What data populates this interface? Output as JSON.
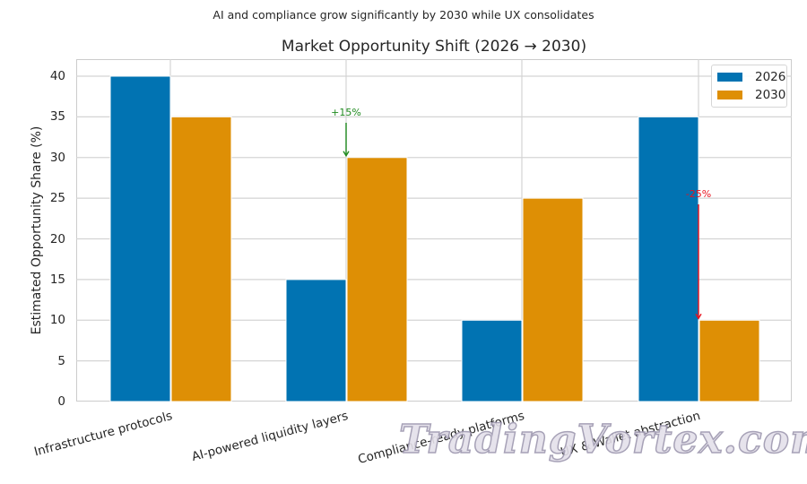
{
  "suptitle": "AI and compliance grow significantly by 2030 while UX consolidates",
  "title": "Market Opportunity Shift (2026 → 2030)",
  "ylabel": "Estimated Opportunity Share (%)",
  "yticks": [
    "0",
    "5",
    "10",
    "15",
    "20",
    "25",
    "30",
    "35",
    "40"
  ],
  "xticks": [
    "Infrastructure protocols",
    "AI-powered liquidity layers",
    "Compliance-ready platforms",
    "UX & Wallet abstraction"
  ],
  "legend": [
    {
      "label": "2026",
      "color": "#0173b2"
    },
    {
      "label": "2030",
      "color": "#de8f05"
    }
  ],
  "annotations": [
    {
      "text": "+15%",
      "color": "#1f8a1f"
    },
    {
      "text": "-25%",
      "color": "#e8121e"
    }
  ],
  "watermark": "TradingVortex.com",
  "chart_data": {
    "type": "bar",
    "title": "Market Opportunity Shift (2026 → 2030)",
    "subtitle": "AI and compliance grow significantly by 2030 while UX consolidates",
    "xlabel": "",
    "ylabel": "Estimated Opportunity Share (%)",
    "categories": [
      "Infrastructure protocols",
      "AI-powered liquidity layers",
      "Compliance-ready platforms",
      "UX & Wallet abstraction"
    ],
    "series": [
      {
        "name": "2026",
        "color": "#0173b2",
        "values": [
          40,
          15,
          10,
          35
        ]
      },
      {
        "name": "2030",
        "color": "#de8f05",
        "values": [
          35,
          30,
          25,
          10
        ]
      }
    ],
    "ylim": [
      0,
      42
    ],
    "yticks": [
      0,
      5,
      10,
      15,
      20,
      25,
      30,
      35,
      40
    ],
    "grid": true,
    "legend_position": "upper right",
    "annotations": [
      {
        "text": "+15%",
        "category": "AI-powered liquidity layers",
        "from": 34,
        "to": 30,
        "color": "green"
      },
      {
        "text": "-25%",
        "category": "UX & Wallet abstraction",
        "from": 24,
        "to": 10,
        "color": "red"
      }
    ]
  }
}
